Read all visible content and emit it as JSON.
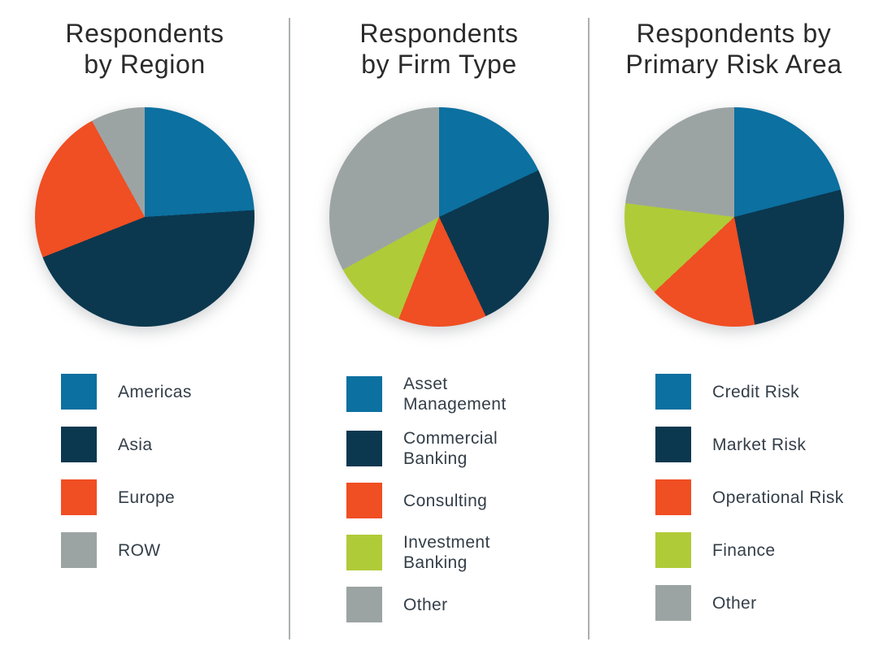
{
  "palette": {
    "blue": "#0C70A0",
    "navy": "#0B384F",
    "orange": "#F04E23",
    "green": "#AFCB38",
    "gray": "#9CA4A3",
    "divider": "#ABB0AF",
    "title_text": "#2A2A2A",
    "legend_text": "#333E48",
    "background": "#FFFFFF"
  },
  "chart_data": [
    {
      "type": "pie",
      "title": "Respondents\nby Region",
      "start_angle_deg": 0,
      "direction": "clockwise",
      "units": "percent",
      "legend_position": "below",
      "slices": [
        {
          "label": "Americas",
          "value": 24,
          "color": "#0C70A0"
        },
        {
          "label": "Asia",
          "value": 45,
          "color": "#0B384F"
        },
        {
          "label": "Europe",
          "value": 23,
          "color": "#F04E23"
        },
        {
          "label": "ROW",
          "value": 8,
          "color": "#9CA4A3"
        }
      ]
    },
    {
      "type": "pie",
      "title": "Respondents\nby Firm Type",
      "start_angle_deg": 0,
      "direction": "clockwise",
      "units": "percent",
      "legend_position": "below",
      "slices": [
        {
          "label": "Asset\nManagement",
          "value": 18,
          "color": "#0C70A0"
        },
        {
          "label": "Commercial\nBanking",
          "value": 25,
          "color": "#0B384F"
        },
        {
          "label": "Consulting",
          "value": 13,
          "color": "#F04E23"
        },
        {
          "label": "Investment\nBanking",
          "value": 11,
          "color": "#AFCB38"
        },
        {
          "label": "Other",
          "value": 33,
          "color": "#9CA4A3"
        }
      ]
    },
    {
      "type": "pie",
      "title": "Respondents by\nPrimary Risk Area",
      "start_angle_deg": 0,
      "direction": "clockwise",
      "units": "percent",
      "legend_position": "below",
      "slices": [
        {
          "label": "Credit Risk",
          "value": 21,
          "color": "#0C70A0"
        },
        {
          "label": "Market Risk",
          "value": 26,
          "color": "#0B384F"
        },
        {
          "label": "Operational Risk",
          "value": 16,
          "color": "#F04E23"
        },
        {
          "label": "Finance",
          "value": 14,
          "color": "#AFCB38"
        },
        {
          "label": "Other",
          "value": 23,
          "color": "#9CA4A3"
        }
      ]
    }
  ]
}
